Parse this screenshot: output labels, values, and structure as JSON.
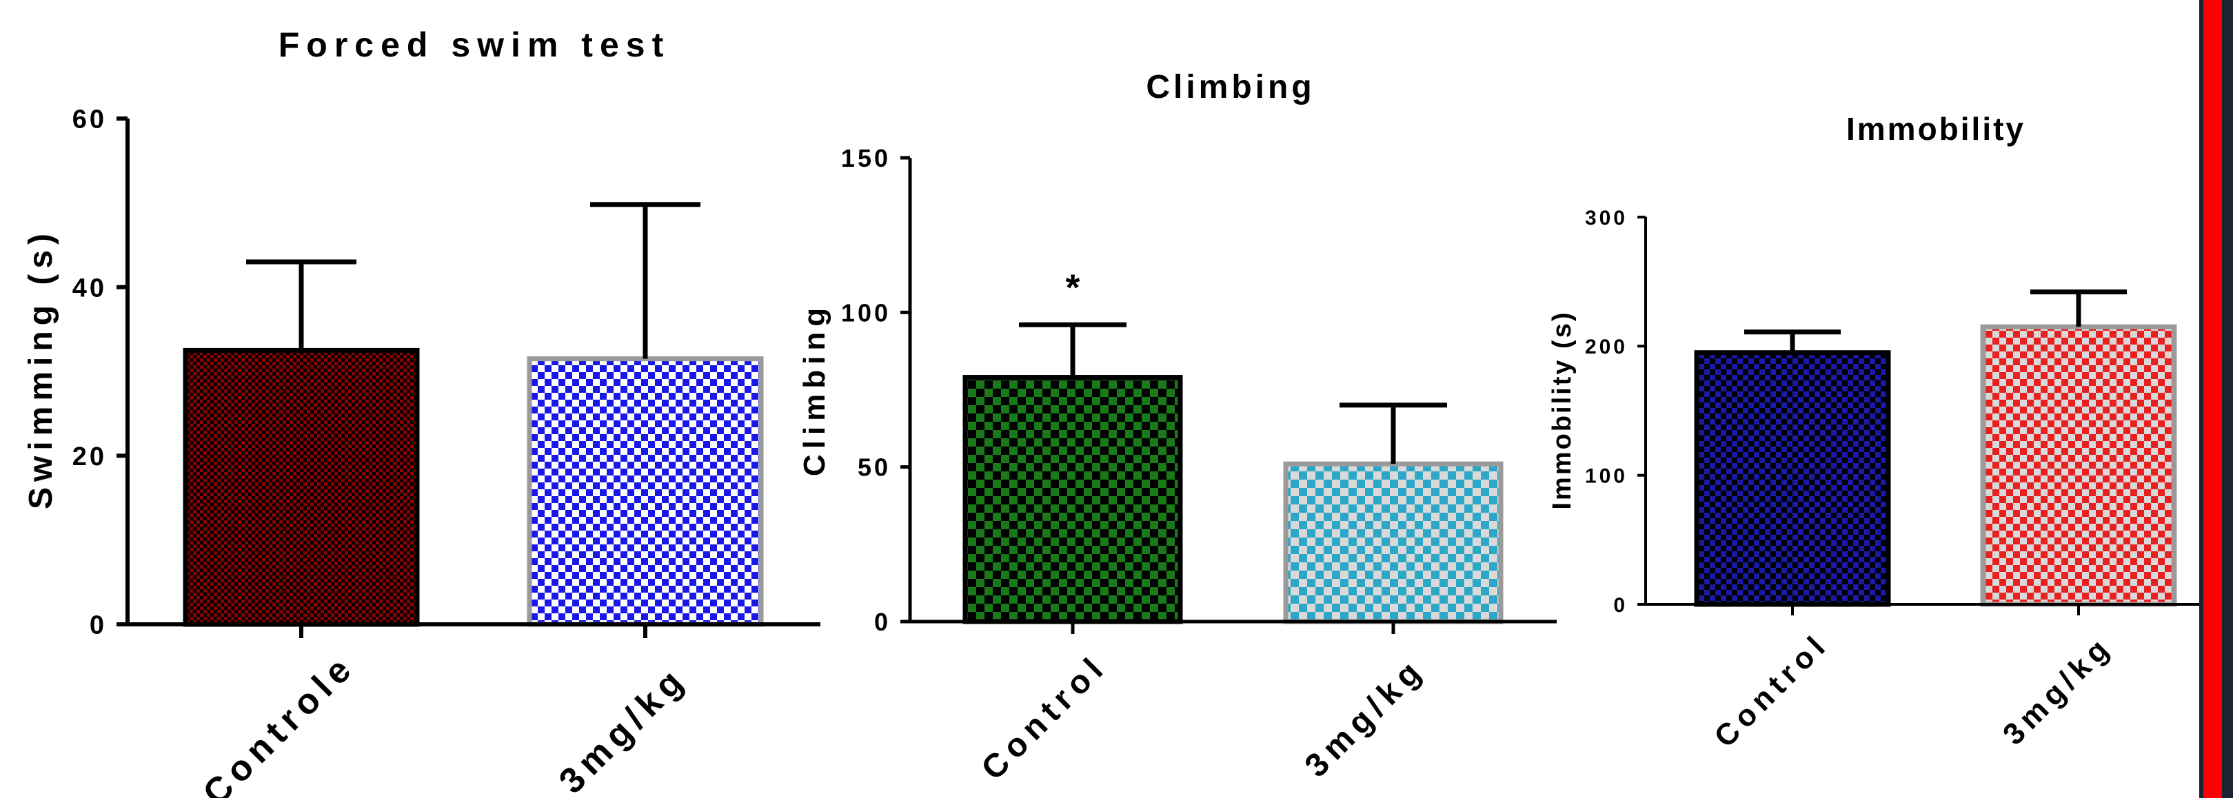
{
  "chart_data": [
    {
      "type": "bar",
      "title": "Forced swim test",
      "xlabel": "",
      "ylabel": "Swimming (s)",
      "categories": [
        "Controle",
        "3mg/kg"
      ],
      "values": [
        32.5,
        31.5
      ],
      "errors": [
        10.5,
        18.3
      ],
      "ylim": [
        0,
        60
      ],
      "yticks": [
        0,
        20,
        40,
        60
      ],
      "bar_colors": [
        "#8b0000",
        "#1818e8"
      ],
      "bar_edge_colors": [
        "#000000",
        "#9a9a9a"
      ],
      "annotations": []
    },
    {
      "type": "bar",
      "title": "Climbing",
      "xlabel": "",
      "ylabel": "Climbing",
      "categories": [
        "Control",
        "3mg/kg"
      ],
      "values": [
        79,
        51
      ],
      "errors": [
        17,
        19
      ],
      "ylim": [
        0,
        150
      ],
      "yticks": [
        0,
        50,
        100,
        150
      ],
      "bar_colors": [
        "#1a7a1a",
        "#2ba8c8"
      ],
      "bar_edge_colors": [
        "#000000",
        "#9a9a9a"
      ],
      "annotations": [
        {
          "category": "Control",
          "text": "*"
        }
      ]
    },
    {
      "type": "bar",
      "title": "Immobility",
      "xlabel": "",
      "ylabel": "Immobility (s)",
      "categories": [
        "Control",
        "3mg/kg"
      ],
      "values": [
        195,
        215
      ],
      "errors": [
        16,
        27
      ],
      "ylim": [
        0,
        300
      ],
      "yticks": [
        0,
        100,
        200,
        300
      ],
      "bar_colors": [
        "#1a1aa8",
        "#e82020"
      ],
      "bar_edge_colors": [
        "#000000",
        "#9a9a9a"
      ],
      "annotations": []
    }
  ],
  "colors": {
    "axis": "#000000",
    "side_bar_red": "#ff0000",
    "side_bar_dark": "#1c2333"
  }
}
